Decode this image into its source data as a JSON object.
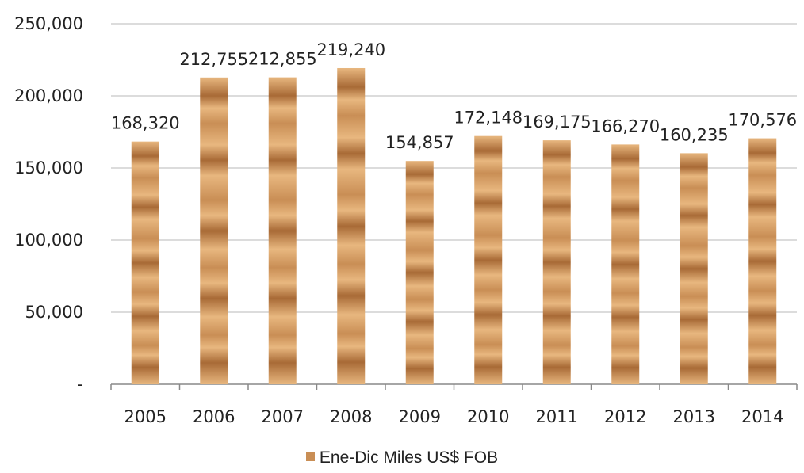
{
  "chart_data": {
    "type": "bar",
    "title": "",
    "xlabel": "",
    "ylabel": "",
    "categories": [
      "2005",
      "2006",
      "2007",
      "2008",
      "2009",
      "2010",
      "2011",
      "2012",
      "2013",
      "2014"
    ],
    "series": [
      {
        "name": "Ene-Dic Miles US$ FOB",
        "values": [
          168320,
          212755,
          212855,
          219240,
          154857,
          172148,
          169175,
          166270,
          160235,
          170576
        ],
        "data_labels": [
          "168,320",
          "212,755",
          "212,855",
          "219,240",
          "154,857",
          "172,148",
          "169,175",
          "166,270",
          "160,235",
          "170,576"
        ]
      }
    ],
    "ylim": [
      0,
      250000
    ],
    "y_ticks": [
      0,
      50000,
      100000,
      150000,
      200000,
      250000
    ],
    "y_tick_labels": [
      "-",
      "50,000",
      "100,000",
      "150,000",
      "200,000",
      "250,000"
    ],
    "grid": true,
    "legend_position": "bottom",
    "colors": {
      "bar_light": "#E8B77F",
      "bar_dark": "#A86A36",
      "gridline": "#D0D0D0",
      "axis": "#888888"
    }
  }
}
